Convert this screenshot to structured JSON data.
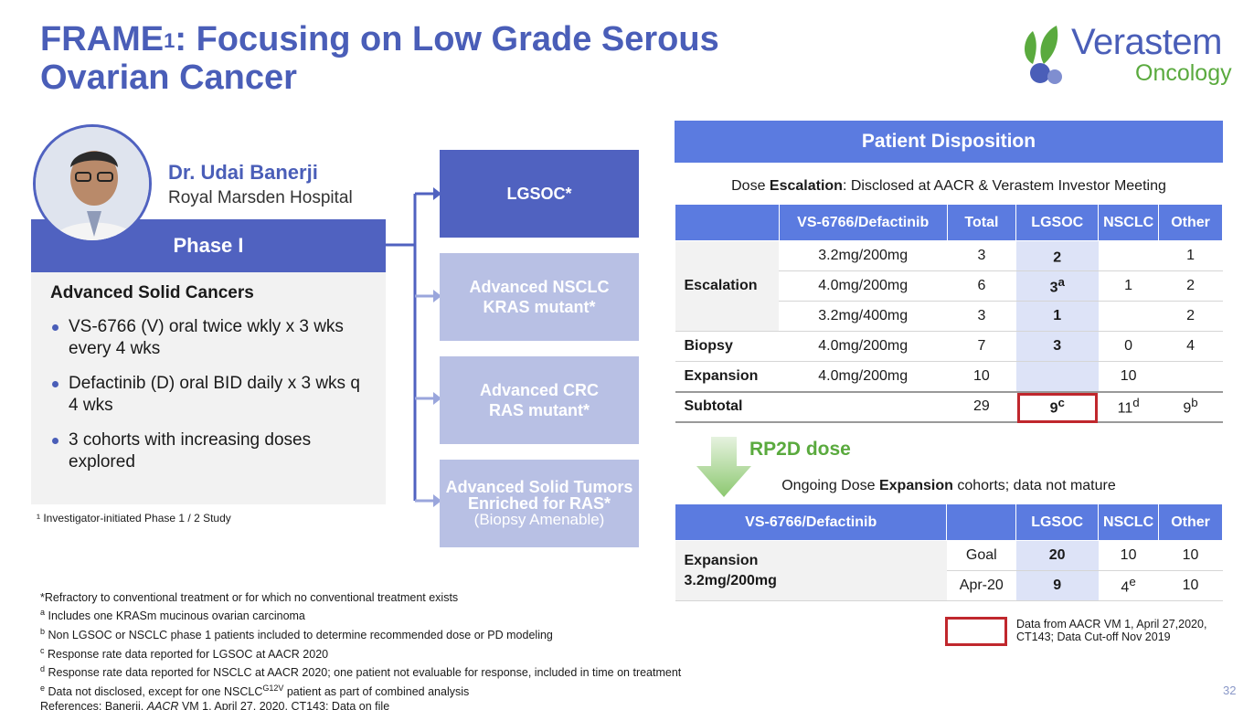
{
  "title": {
    "main": "FRAME",
    "sup": "1",
    "rest_line1": ": Focusing on Low Grade Serous",
    "line2": "Ovarian Cancer"
  },
  "logo": {
    "brand": "Verastem",
    "sub": "Oncology"
  },
  "presenter": {
    "name": "Dr. Udai Banerji",
    "org": "Royal Marsden Hospital"
  },
  "phase": "Phase I",
  "study": {
    "heading": "Advanced Solid Cancers",
    "bullets": [
      "VS-6766 (V) oral twice wkly x 3 wks every 4 wks",
      "Defactinib (D) oral BID daily x 3 wks q 4 wks",
      "3 cohorts with increasing doses explored"
    ]
  },
  "footnote_1": "¹ Investigator-initiated Phase 1 / 2 Study",
  "arms": [
    {
      "line1": "LGSOC*",
      "line2": ""
    },
    {
      "line1": "Advanced NSCLC",
      "line2": "KRAS mutant*"
    },
    {
      "line1": "Advanced CRC",
      "line2": "RAS mutant*"
    },
    {
      "line1": "Advanced Solid Tumors Enriched for RAS*",
      "line2": "(Biopsy Amenable)"
    }
  ],
  "disposition": {
    "title": "Patient Disposition",
    "escalation_note": {
      "pre": "Dose ",
      "bold": "Escalation",
      "post": ": Disclosed at AACR & Verastem Investor Meeting"
    },
    "table1": {
      "headers": [
        "",
        "VS-6766/Defactinib",
        "Total",
        "LGSOC",
        "NSCLC",
        "Other"
      ],
      "rows": [
        {
          "label": "Escalation",
          "dose": "3.2mg/200mg",
          "total": "3",
          "lgsoc": "2",
          "lgsoc_sup": "",
          "nsclc": "",
          "nsclc_sup": "",
          "other": "1",
          "other_sup": ""
        },
        {
          "label": "",
          "dose": "4.0mg/200mg",
          "total": "6",
          "lgsoc": "3",
          "lgsoc_sup": "a",
          "nsclc": "1",
          "nsclc_sup": "",
          "other": "2",
          "other_sup": ""
        },
        {
          "label": "",
          "dose": "3.2mg/400mg",
          "total": "3",
          "lgsoc": "1",
          "lgsoc_sup": "",
          "nsclc": "",
          "nsclc_sup": "",
          "other": "2",
          "other_sup": ""
        },
        {
          "label": "Biopsy",
          "dose": "4.0mg/200mg",
          "total": "7",
          "lgsoc": "3",
          "lgsoc_sup": "",
          "nsclc": "0",
          "nsclc_sup": "",
          "other": "4",
          "other_sup": ""
        },
        {
          "label": "Expansion",
          "dose": "4.0mg/200mg",
          "total": "10",
          "lgsoc": "",
          "lgsoc_sup": "",
          "nsclc": "10",
          "nsclc_sup": "",
          "other": "",
          "other_sup": ""
        },
        {
          "label": "Subtotal",
          "dose": "",
          "total": "29",
          "lgsoc": "9",
          "lgsoc_sup": "c",
          "nsclc": "11",
          "nsclc_sup": "d",
          "other": "9",
          "other_sup": "b"
        }
      ]
    },
    "rp2d": "RP2D dose",
    "expansion_note": {
      "pre": "Ongoing Dose ",
      "bold": "Expansion",
      "post": " cohorts; data not mature"
    },
    "table2": {
      "headers": [
        "VS-6766/Defactinib",
        "",
        "LGSOC",
        "NSCLC",
        "Other"
      ],
      "row_label_line1": "Expansion",
      "row_label_line2": "3.2mg/200mg",
      "rows": [
        {
          "label": "Goal",
          "lgsoc": "20",
          "nsclc": "10",
          "nsclc_sup": "",
          "other": "10"
        },
        {
          "label": "Apr-20",
          "lgsoc": "9",
          "nsclc": "4",
          "nsclc_sup": "e",
          "other": "10"
        }
      ]
    },
    "legend": "Data from AACR VM 1, April 27,2020, CT143; Data Cut-off Nov 2019"
  },
  "footnotes": {
    "star": "*Refractory to conventional treatment or for which no conventional treatment exists",
    "a": "Includes one KRASm mucinous ovarian carcinoma",
    "b": "Non LGSOC or NSCLC phase 1 patients included to determine recommended dose or PD modeling",
    "c": "Response rate data reported for LGSOC at AACR 2020",
    "d": "Response rate data reported for NSCLC at AACR 2020; one patient not evaluable for response, included in time on treatment",
    "e_pre": "Data not disclosed, except for one NSCLC",
    "e_sup": "G12V",
    "e_post": " patient as part of combined analysis",
    "refs_pre": "References: Banerji, ",
    "refs_italic": "AACR",
    "refs_post": " VM 1, April 27, 2020, CT143; Data on file"
  },
  "page_number": "32",
  "colors": {
    "brand_blue": "#4a5eb8",
    "table_blue": "#5b7be0",
    "brand_green": "#5aaa3e",
    "highlight_red": "#c0272d"
  }
}
